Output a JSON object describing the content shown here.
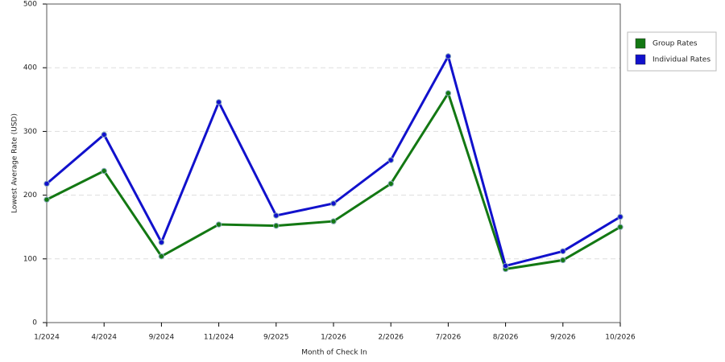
{
  "chart_data": {
    "type": "line",
    "x_label": "Month of Check In",
    "y_label": "Lowest Average Rate (USD)",
    "categories": [
      "1/2024",
      "4/2024",
      "9/2024",
      "11/2024",
      "9/2025",
      "1/2026",
      "2/2026",
      "7/2026",
      "8/2026",
      "9/2026",
      "10/2026"
    ],
    "series": [
      {
        "name": "Group Rates",
        "color": "#137813",
        "values": [
          193,
          238,
          104,
          154,
          152,
          159,
          218,
          360,
          84,
          98,
          150
        ]
      },
      {
        "name": "Individual Rates",
        "color": "#1111cc",
        "values": [
          218,
          295,
          126,
          346,
          168,
          187,
          255,
          418,
          89,
          112,
          166
        ]
      }
    ],
    "ylim": [
      0,
      500
    ],
    "yticks": [
      0,
      100,
      200,
      300,
      400,
      500
    ],
    "grid": true
  }
}
